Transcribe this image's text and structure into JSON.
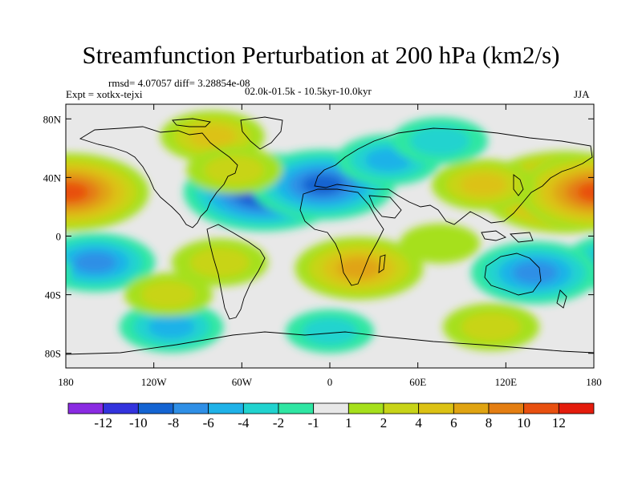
{
  "title": "Streamfunction Perturbation at 200 hPa (km2/s)",
  "stats": "rmsd= 4.07057  diff= 3.28854e-08",
  "experiment": "Expt = xotkx-tejxi",
  "period": "02.0k-01.5k - 10.5kyr-10.0kyr",
  "season": "JJA",
  "map": {
    "lat_labels": [
      {
        "lat": 80,
        "label": "80N"
      },
      {
        "lat": 40,
        "label": "40N"
      },
      {
        "lat": 0,
        "label": "0"
      },
      {
        "lat": -40,
        "label": "40S"
      },
      {
        "lat": -80,
        "label": "80S"
      }
    ],
    "lon_labels": [
      {
        "lon": -180,
        "label": "180"
      },
      {
        "lon": -120,
        "label": "120W"
      },
      {
        "lon": -60,
        "label": "60W"
      },
      {
        "lon": 0,
        "label": "0"
      },
      {
        "lon": 60,
        "label": "60E"
      },
      {
        "lon": 120,
        "label": "120E"
      },
      {
        "lon": 180,
        "label": "180"
      }
    ],
    "lon_range": [
      -180,
      180
    ],
    "lat_range": [
      -90,
      90
    ]
  },
  "colorbar": {
    "colors": [
      "#8a2be2",
      "#3333dd",
      "#1464d2",
      "#2f8fe6",
      "#1fb2e8",
      "#21d3cf",
      "#2fe6a3",
      "#e8e8e8",
      "#a6e01c",
      "#c8d418",
      "#dcc214",
      "#e0a412",
      "#e47e12",
      "#e85010",
      "#e41c0c"
    ],
    "labels": [
      "-12",
      "-10",
      "-8",
      "-6",
      "-4",
      "-2",
      "-1",
      "1",
      "2",
      "4",
      "6",
      "8",
      "10",
      "12"
    ]
  },
  "anomalies": [
    {
      "lon": -45,
      "lat": 30,
      "value": -12
    },
    {
      "lon": -5,
      "lat": 35,
      "value": -10
    },
    {
      "lon": 40,
      "lat": 52,
      "value": -5
    },
    {
      "lon": 75,
      "lat": 65,
      "value": -4
    },
    {
      "lon": -160,
      "lat": -18,
      "value": -7
    },
    {
      "lon": 140,
      "lat": -25,
      "value": -8
    },
    {
      "lon": -108,
      "lat": -62,
      "value": -5
    },
    {
      "lon": 0,
      "lat": -65,
      "value": -3
    },
    {
      "lon": 160,
      "lat": 30,
      "value": 13
    },
    {
      "lon": -178,
      "lat": 30,
      "value": 12
    },
    {
      "lon": 20,
      "lat": -22,
      "value": 8
    },
    {
      "lon": -80,
      "lat": 68,
      "value": 5
    },
    {
      "lon": -65,
      "lat": 45,
      "value": 4
    },
    {
      "lon": 105,
      "lat": 35,
      "value": 5
    },
    {
      "lon": -75,
      "lat": -18,
      "value": 4
    },
    {
      "lon": 110,
      "lat": -62,
      "value": 4
    },
    {
      "lon": -110,
      "lat": -40,
      "value": 3
    },
    {
      "lon": 75,
      "lat": -5,
      "value": 2
    }
  ]
}
